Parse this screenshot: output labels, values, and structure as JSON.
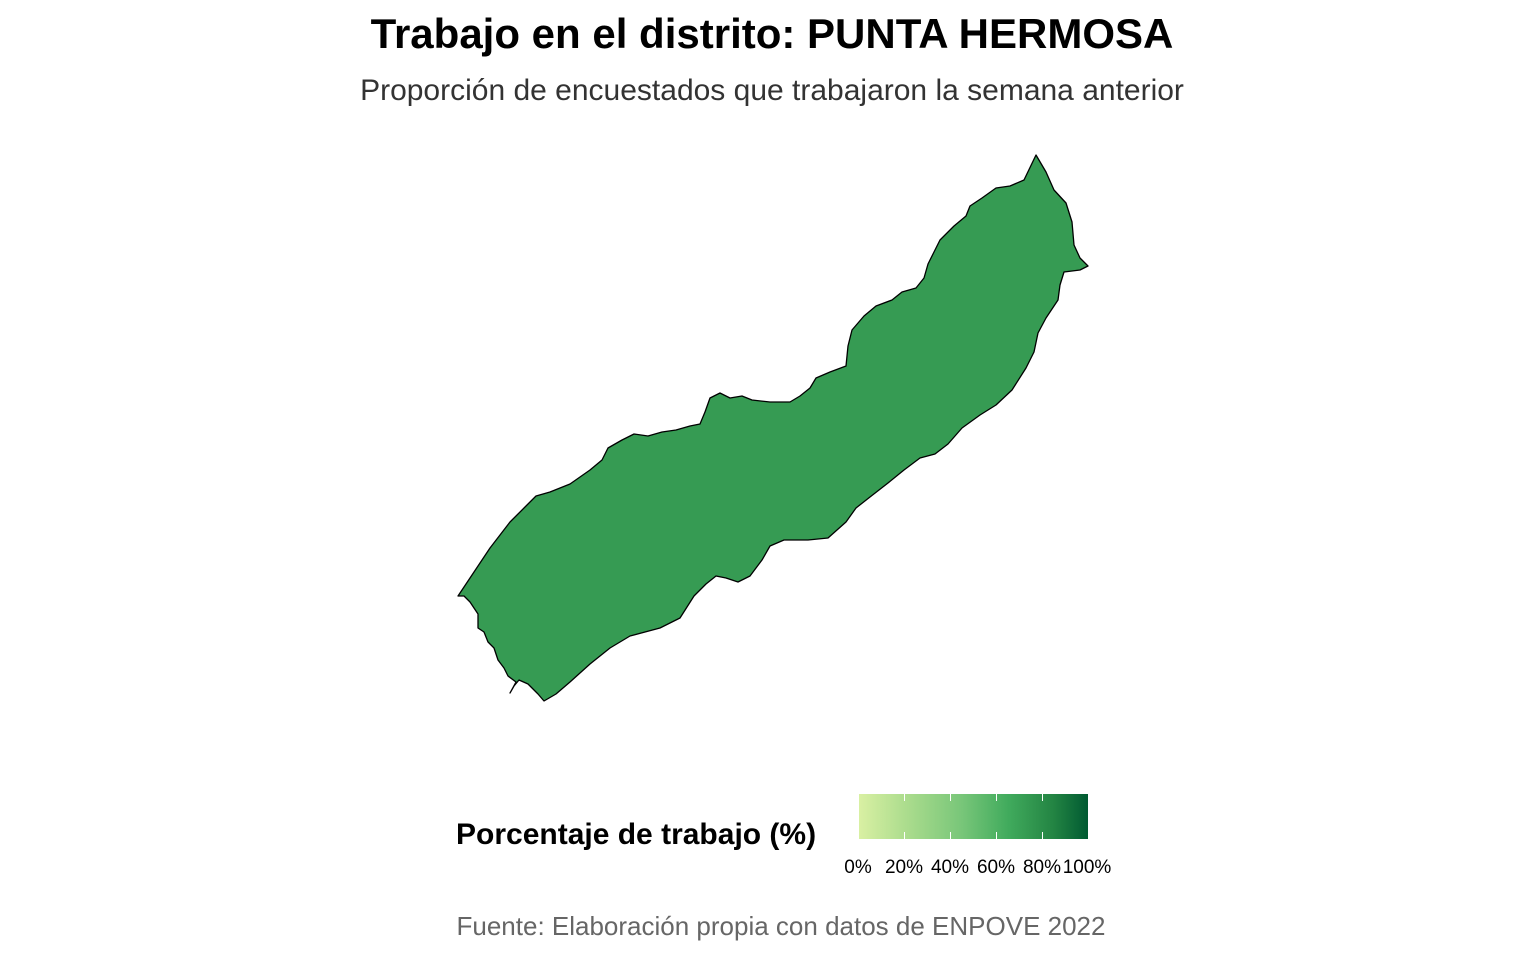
{
  "title": "Trabajo en el distrito: PUNTA HERMOSA",
  "subtitle": "Proporción de encuestados que trabajaron la semana anterior",
  "caption": "Fuente: Elaboración propia con datos de ENPOVE 2022",
  "legend": {
    "title": "Porcentaje de trabajo (%)",
    "labels": [
      "0%",
      "20%",
      "40%",
      "60%",
      "80%",
      "100%"
    ],
    "colors": [
      "#d9f0a3",
      "#addd8e",
      "#78c679",
      "#41ab5d",
      "#238443",
      "#005a32"
    ]
  },
  "map": {
    "region": "PUNTA HERMOSA",
    "fill_color": "#369b53",
    "border_color": "#000000"
  }
}
